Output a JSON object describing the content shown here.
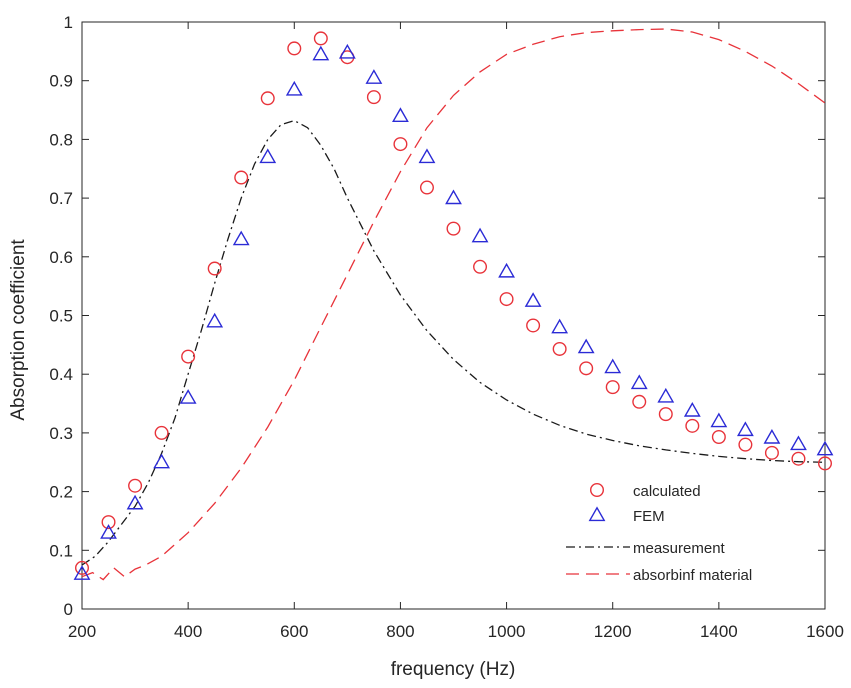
{
  "chart_data": {
    "type": "line",
    "title": "",
    "xlabel": "frequency (Hz)",
    "ylabel": "Absorption coefficient",
    "xlim": [
      200,
      1600
    ],
    "ylim": [
      0,
      1
    ],
    "grid": false,
    "legend_position": "bottom-right",
    "xticks": [
      200,
      400,
      600,
      800,
      1000,
      1200,
      1400,
      1600
    ],
    "yticks": [
      0,
      0.1,
      0.2,
      0.3,
      0.4,
      0.5,
      0.6,
      0.7,
      0.8,
      0.9,
      1
    ],
    "xtick_labels": [
      "200",
      "400",
      "600",
      "800",
      "1000",
      "1200",
      "1400",
      "1600"
    ],
    "ytick_labels": [
      "0",
      "0.1",
      "0.2",
      "0.3",
      "0.4",
      "0.5",
      "0.6",
      "0.7",
      "0.8",
      "0.9",
      "1"
    ],
    "series": [
      {
        "name": "calculated",
        "style": "circle-markers",
        "color": "#e8333a",
        "x": [
          200,
          250,
          300,
          350,
          400,
          450,
          500,
          550,
          600,
          650,
          700,
          750,
          800,
          850,
          900,
          950,
          1000,
          1050,
          1100,
          1150,
          1200,
          1250,
          1300,
          1350,
          1400,
          1450,
          1500,
          1550,
          1600
        ],
        "y": [
          0.07,
          0.148,
          0.21,
          0.3,
          0.43,
          0.58,
          0.735,
          0.87,
          0.955,
          0.972,
          0.94,
          0.872,
          0.792,
          0.718,
          0.648,
          0.583,
          0.528,
          0.483,
          0.443,
          0.41,
          0.378,
          0.353,
          0.332,
          0.312,
          0.293,
          0.28,
          0.266,
          0.256,
          0.248
        ]
      },
      {
        "name": "FEM",
        "style": "triangle-markers",
        "color": "#2b2bd6",
        "x": [
          200,
          250,
          300,
          350,
          400,
          450,
          500,
          550,
          600,
          650,
          700,
          750,
          800,
          850,
          900,
          950,
          1000,
          1050,
          1100,
          1150,
          1200,
          1250,
          1300,
          1350,
          1400,
          1450,
          1500,
          1550,
          1600
        ],
        "y": [
          0.06,
          0.13,
          0.18,
          0.25,
          0.36,
          0.49,
          0.63,
          0.77,
          0.885,
          0.945,
          0.948,
          0.905,
          0.84,
          0.77,
          0.7,
          0.635,
          0.575,
          0.525,
          0.48,
          0.446,
          0.412,
          0.385,
          0.362,
          0.338,
          0.32,
          0.305,
          0.292,
          0.281,
          0.272
        ]
      },
      {
        "name": "measurement",
        "style": "dash-dot-line",
        "color": "#1a1a1a",
        "x": [
          200,
          225,
          250,
          275,
          300,
          325,
          350,
          375,
          400,
          425,
          450,
          475,
          500,
          525,
          550,
          575,
          600,
          625,
          650,
          675,
          700,
          750,
          800,
          850,
          900,
          950,
          1000,
          1050,
          1100,
          1150,
          1200,
          1250,
          1300,
          1350,
          1400,
          1450,
          1500,
          1550,
          1600
        ],
        "y": [
          0.075,
          0.09,
          0.115,
          0.145,
          0.175,
          0.215,
          0.265,
          0.325,
          0.4,
          0.475,
          0.555,
          0.63,
          0.7,
          0.758,
          0.8,
          0.825,
          0.832,
          0.82,
          0.79,
          0.75,
          0.7,
          0.61,
          0.535,
          0.474,
          0.425,
          0.386,
          0.356,
          0.332,
          0.313,
          0.298,
          0.287,
          0.278,
          0.271,
          0.265,
          0.26,
          0.256,
          0.253,
          0.251,
          0.25
        ]
      },
      {
        "name": "absorbinf material",
        "style": "dashed-line",
        "color": "#e8333a",
        "x": [
          200,
          220,
          240,
          260,
          280,
          300,
          320,
          350,
          400,
          450,
          500,
          550,
          600,
          650,
          700,
          750,
          800,
          850,
          900,
          950,
          1000,
          1050,
          1100,
          1150,
          1200,
          1250,
          1300,
          1350,
          1400,
          1450,
          1500,
          1550,
          1600
        ],
        "y": [
          0.055,
          0.062,
          0.05,
          0.07,
          0.055,
          0.068,
          0.075,
          0.09,
          0.13,
          0.18,
          0.24,
          0.31,
          0.39,
          0.48,
          0.57,
          0.66,
          0.745,
          0.82,
          0.875,
          0.915,
          0.945,
          0.962,
          0.975,
          0.982,
          0.985,
          0.987,
          0.988,
          0.983,
          0.97,
          0.95,
          0.925,
          0.895,
          0.862
        ]
      }
    ]
  }
}
